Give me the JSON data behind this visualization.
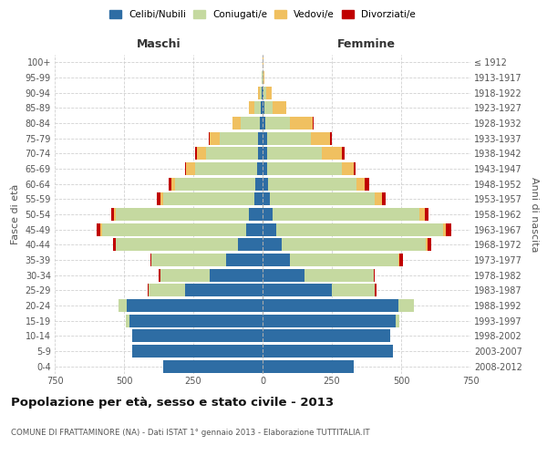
{
  "age_groups": [
    "0-4",
    "5-9",
    "10-14",
    "15-19",
    "20-24",
    "25-29",
    "30-34",
    "35-39",
    "40-44",
    "45-49",
    "50-54",
    "55-59",
    "60-64",
    "65-69",
    "70-74",
    "75-79",
    "80-84",
    "85-89",
    "90-94",
    "95-99",
    "100+"
  ],
  "birth_years": [
    "2008-2012",
    "2003-2007",
    "1998-2002",
    "1993-1997",
    "1988-1992",
    "1983-1987",
    "1978-1982",
    "1973-1977",
    "1968-1972",
    "1963-1967",
    "1958-1962",
    "1953-1957",
    "1948-1952",
    "1943-1947",
    "1938-1942",
    "1933-1937",
    "1928-1932",
    "1923-1927",
    "1918-1922",
    "1913-1917",
    "≤ 1912"
  ],
  "male_celibi": [
    360,
    470,
    470,
    480,
    490,
    280,
    190,
    130,
    90,
    60,
    50,
    30,
    25,
    20,
    18,
    15,
    10,
    5,
    2,
    0,
    0
  ],
  "male_coniugati": [
    0,
    0,
    0,
    15,
    30,
    130,
    180,
    270,
    440,
    520,
    480,
    330,
    290,
    225,
    185,
    140,
    70,
    25,
    8,
    2,
    0
  ],
  "male_vedovi": [
    0,
    0,
    0,
    0,
    0,
    0,
    0,
    0,
    0,
    5,
    5,
    10,
    15,
    30,
    35,
    35,
    30,
    20,
    5,
    0,
    0
  ],
  "male_divorziati": [
    0,
    0,
    0,
    0,
    0,
    5,
    5,
    5,
    10,
    15,
    10,
    10,
    10,
    5,
    5,
    5,
    0,
    0,
    0,
    0,
    0
  ],
  "female_celibi": [
    330,
    470,
    460,
    480,
    490,
    250,
    150,
    100,
    70,
    50,
    35,
    25,
    20,
    15,
    15,
    15,
    10,
    5,
    2,
    0,
    0
  ],
  "female_coniugati": [
    0,
    0,
    0,
    15,
    55,
    155,
    250,
    390,
    520,
    600,
    530,
    380,
    320,
    270,
    200,
    160,
    90,
    30,
    10,
    2,
    0
  ],
  "female_vedovi": [
    0,
    0,
    0,
    0,
    0,
    0,
    0,
    5,
    5,
    10,
    20,
    25,
    30,
    45,
    70,
    70,
    80,
    50,
    20,
    5,
    2
  ],
  "female_divorziati": [
    0,
    0,
    0,
    0,
    0,
    5,
    5,
    10,
    15,
    20,
    15,
    15,
    15,
    5,
    10,
    5,
    5,
    0,
    0,
    0,
    0
  ],
  "color_celibi": "#2e6da4",
  "color_coniugati": "#c5d9a0",
  "color_vedovi": "#f0c060",
  "color_divorziati": "#c00000",
  "title": "Popolazione per età, sesso e stato civile - 2013",
  "subtitle": "COMUNE DI FRATTAMINORE (NA) - Dati ISTAT 1° gennaio 2013 - Elaborazione TUTTITALIA.IT",
  "xlabel_left": "Maschi",
  "xlabel_right": "Femmine",
  "ylabel_left": "Fasce di età",
  "ylabel_right": "Anni di nascita",
  "xlim": 750,
  "bg_color": "#ffffff",
  "grid_color": "#cccccc",
  "legend_labels": [
    "Celibi/Nubili",
    "Coniugati/e",
    "Vedovi/e",
    "Divorziati/e"
  ]
}
